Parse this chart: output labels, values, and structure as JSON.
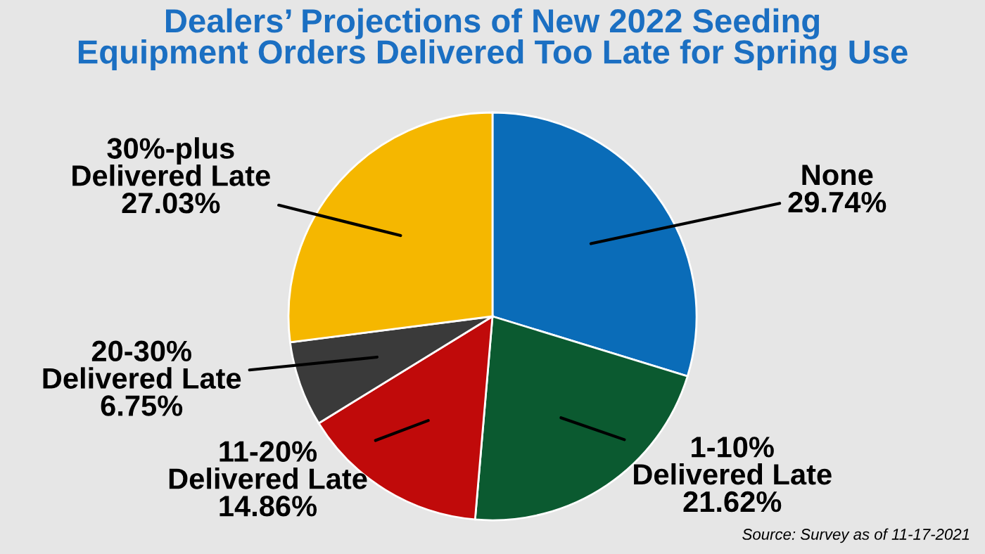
{
  "chart_data": {
    "type": "pie",
    "title": "Dealers’ Projections of New 2022 Seeding\nEquipment Orders Delivered Too Late for Spring Use",
    "categories": [
      "None",
      "1-10%\nDelivered Late",
      "11-20%\nDelivered Late",
      "20-30%\nDelivered Late",
      "30%-plus\nDelivered Late"
    ],
    "values": [
      29.74,
      21.62,
      14.86,
      6.75,
      27.03
    ],
    "colors": [
      "#0a6cb8",
      "#0b5a30",
      "#c00a0a",
      "#3a3a3a",
      "#f5b700"
    ],
    "value_labels": [
      "29.74%",
      "21.62%",
      "14.86%",
      "6.75%",
      "27.03%"
    ],
    "legend": false,
    "annotations": [
      "Source: Survey as of 11-17-2021"
    ]
  }
}
